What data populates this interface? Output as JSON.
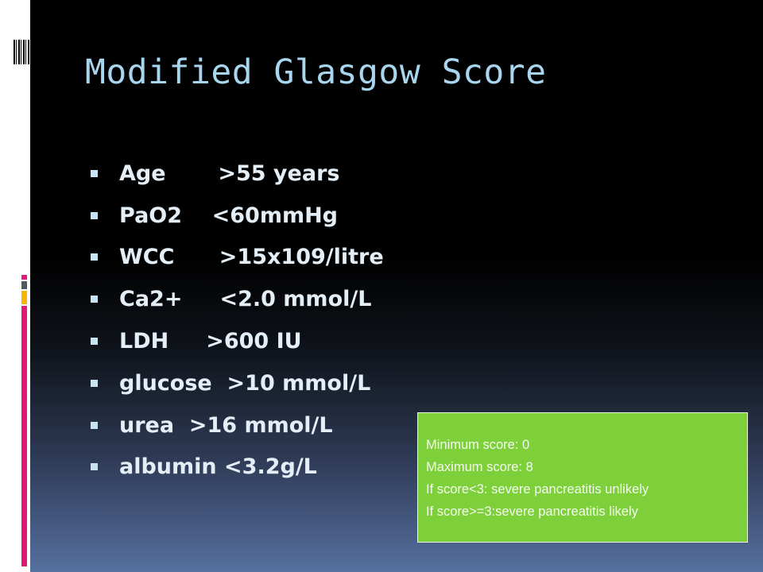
{
  "title": "Modified Glasgow Score",
  "criteria": [
    "Age       >55 years",
    "PaO2    <60mmHg",
    "WCC      >15x109/litre",
    "Ca2+     <2.0 mmol/L",
    "LDH     >600 IU",
    "glucose  >10 mmol/L",
    "urea  >16 mmol/L",
    "albumin <3.2g/L"
  ],
  "note": [
    "Minimum score: 0",
    "Maximum score: 8",
    "If score<3: severe pancreatitis unlikely",
    "If score>=3:severe pancreatitis likely"
  ],
  "colors": {
    "accent_pink": "#e0187a",
    "accent_gray": "#4d5a62",
    "accent_yellow": "#f7b500",
    "note_bg": "#7dd03a",
    "title": "#a9d6ef"
  }
}
